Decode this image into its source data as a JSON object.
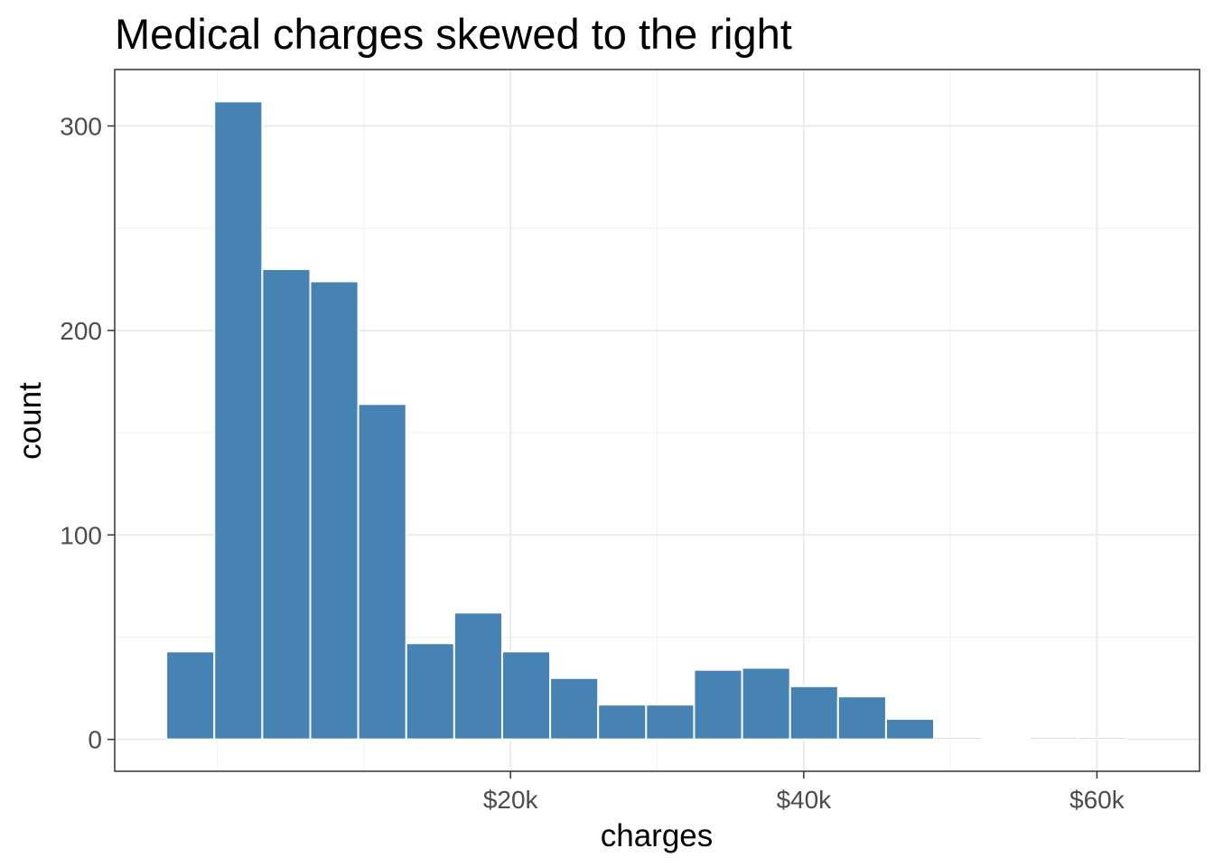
{
  "chart_data": {
    "type": "bar",
    "title": "Medical charges skewed to the right",
    "xlabel": "charges",
    "ylabel": "count",
    "bar_color": "#4682B4",
    "bin_width": 3273,
    "bins": [
      {
        "x_min": -3480,
        "x_max": -207,
        "count": 43
      },
      {
        "x_min": -207,
        "x_max": 3066,
        "count": 312
      },
      {
        "x_min": 3066,
        "x_max": 6339,
        "count": 230
      },
      {
        "x_min": 6339,
        "x_max": 9612,
        "count": 224
      },
      {
        "x_min": 9612,
        "x_max": 12885,
        "count": 164
      },
      {
        "x_min": 12885,
        "x_max": 16158,
        "count": 47
      },
      {
        "x_min": 16158,
        "x_max": 19431,
        "count": 62
      },
      {
        "x_min": 19431,
        "x_max": 22704,
        "count": 43
      },
      {
        "x_min": 22704,
        "x_max": 25977,
        "count": 30
      },
      {
        "x_min": 25977,
        "x_max": 29250,
        "count": 17
      },
      {
        "x_min": 29250,
        "x_max": 32523,
        "count": 17
      },
      {
        "x_min": 32523,
        "x_max": 35796,
        "count": 34
      },
      {
        "x_min": 35796,
        "x_max": 39069,
        "count": 35
      },
      {
        "x_min": 39069,
        "x_max": 42342,
        "count": 26
      },
      {
        "x_min": 42342,
        "x_max": 45615,
        "count": 21
      },
      {
        "x_min": 45615,
        "x_max": 48888,
        "count": 10
      },
      {
        "x_min": 48888,
        "x_max": 52161,
        "count": 1
      },
      {
        "x_min": 52161,
        "x_max": 55434,
        "count": 0
      },
      {
        "x_min": 55434,
        "x_max": 58707,
        "count": 1
      },
      {
        "x_min": 58707,
        "x_max": 61980,
        "count": 1
      }
    ],
    "x_ticks": [
      {
        "value": 20000,
        "label": "$20k"
      },
      {
        "value": 40000,
        "label": "$40k"
      },
      {
        "value": 60000,
        "label": "$60k"
      }
    ],
    "y_ticks": [
      {
        "value": 0,
        "label": "0"
      },
      {
        "value": 100,
        "label": "100"
      },
      {
        "value": 200,
        "label": "200"
      },
      {
        "value": 300,
        "label": "300"
      }
    ],
    "x_minor_ticks": [
      0,
      10000,
      30000,
      50000
    ],
    "y_minor_ticks": [
      50,
      150,
      250
    ],
    "xlim": [
      -7000,
      67000
    ],
    "ylim": [
      -15.6,
      327.6
    ],
    "grid": true,
    "legend": "none"
  }
}
